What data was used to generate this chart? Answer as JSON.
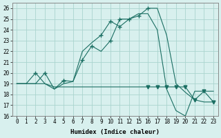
{
  "xlabel": "Humidex (Indice chaleur)",
  "bg_color": "#d8f0ee",
  "grid_color": "#aad4ce",
  "line_color": "#1a6e62",
  "ylim": [
    16,
    26.5
  ],
  "yticks": [
    16,
    17,
    18,
    19,
    20,
    21,
    22,
    23,
    24,
    25,
    26
  ],
  "xtick_positions": [
    0,
    1,
    2,
    3,
    4,
    5,
    6,
    7,
    8,
    9,
    10,
    11,
    12,
    13,
    14,
    15,
    16,
    17,
    18,
    19,
    20,
    21
  ],
  "xtick_labels": [
    "0",
    "1",
    "2",
    "3",
    "4",
    "5",
    "6",
    "7",
    "8",
    "9",
    "10",
    "11",
    "12",
    "15",
    "16",
    "17",
    "18",
    "19",
    "20",
    "21",
    "22",
    "23"
  ],
  "xlim": [
    -0.5,
    21.5
  ],
  "line1_x": [
    0,
    1,
    2,
    3,
    4,
    5,
    6,
    7,
    8,
    9,
    10,
    11,
    12,
    13,
    14,
    15,
    16,
    17,
    18,
    19,
    20,
    21
  ],
  "line1_y": [
    19,
    19,
    20,
    19,
    18.5,
    19,
    19.2,
    22,
    22.8,
    23.5,
    24.8,
    24.3,
    25,
    25.3,
    26,
    26,
    23.5,
    19,
    18.2,
    17.5,
    17.3,
    17.3
  ],
  "line2_x": [
    0,
    1,
    2,
    3,
    4,
    5,
    6,
    7,
    8,
    9,
    10,
    11,
    12,
    13,
    14,
    15,
    16,
    17,
    18,
    19,
    20,
    21
  ],
  "line2_y": [
    19,
    19,
    19,
    20,
    18.5,
    19.3,
    19.2,
    21.2,
    22.5,
    22,
    23,
    25,
    25,
    25.5,
    25.5,
    24,
    18.5,
    16.5,
    16,
    18.3,
    18.3,
    18.3
  ],
  "line3_x": [
    0,
    1,
    2,
    3,
    4,
    5,
    6,
    7,
    8,
    9,
    10,
    11,
    12,
    13,
    14,
    15,
    16,
    17,
    18,
    19,
    20,
    21
  ],
  "line3_y": [
    19,
    19,
    19,
    19,
    18.7,
    18.7,
    18.7,
    18.7,
    18.7,
    18.7,
    18.7,
    18.7,
    18.7,
    18.7,
    18.7,
    18.7,
    18.7,
    18.7,
    18.7,
    17.5,
    18.3,
    17.3
  ],
  "plus_markers_x": [
    2,
    5,
    9,
    10,
    11,
    12,
    13,
    14
  ],
  "plus_markers_y": [
    20,
    19.3,
    23.5,
    24.8,
    24.3,
    25,
    25.3,
    26
  ],
  "plus_markers2_x": [
    3,
    5,
    7,
    8,
    10,
    11
  ],
  "plus_markers2_y": [
    20,
    19.3,
    21.2,
    22.5,
    23,
    25
  ],
  "down_markers_x": [
    14,
    15,
    16,
    17,
    18,
    19,
    20,
    21
  ],
  "down_markers_y": [
    18.7,
    18.7,
    18.7,
    18.7,
    18.7,
    17.5,
    18.3,
    17.3
  ]
}
